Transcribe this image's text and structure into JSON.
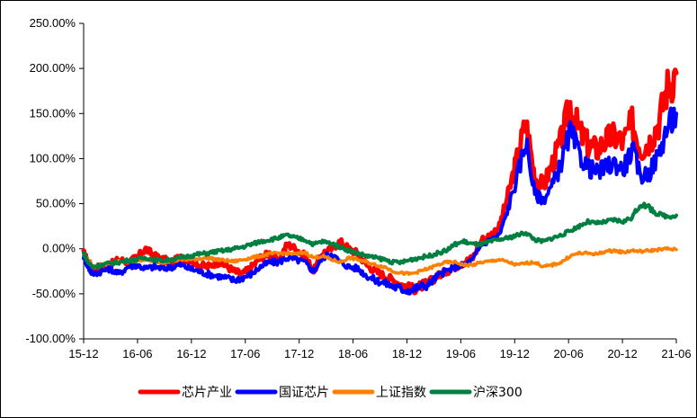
{
  "chart_data": {
    "type": "line",
    "title": "",
    "xlabel": "",
    "ylabel": "",
    "ylim": [
      -100,
      250
    ],
    "y_ticks": [
      -100,
      -50,
      0,
      50,
      100,
      150,
      200,
      250
    ],
    "y_tick_labels": [
      "-100.00%",
      "-50.00%",
      "0.00%",
      "50.00%",
      "100.00%",
      "150.00%",
      "200.00%",
      "250.00%"
    ],
    "x_tick_labels": [
      "15-12",
      "16-06",
      "16-12",
      "17-06",
      "17-12",
      "18-06",
      "18-12",
      "19-06",
      "19-12",
      "20-06",
      "20-12",
      "21-06"
    ],
    "x_range": [
      0,
      67
    ],
    "legend_position": "bottom",
    "series": [
      {
        "name": "芯片产业",
        "color": "#ff0000",
        "x": [
          0,
          0.5,
          1,
          2,
          3,
          4,
          5,
          6,
          7,
          8,
          9,
          10,
          11,
          12,
          13,
          14,
          15,
          16,
          17,
          18,
          19,
          20,
          21,
          22,
          23,
          24,
          25,
          26,
          27,
          28,
          29,
          30,
          31,
          32,
          33,
          34,
          35,
          36,
          37,
          38,
          39,
          40,
          41,
          42,
          43,
          44,
          45,
          46,
          47,
          48,
          49,
          50,
          51,
          52,
          53,
          54,
          55,
          56,
          57,
          58,
          59,
          60,
          61,
          62,
          63,
          64,
          65,
          66,
          67
        ],
        "values": [
          -5,
          -15,
          -22,
          -20,
          -18,
          -12,
          -15,
          -10,
          0,
          -8,
          -12,
          -15,
          -10,
          -12,
          -18,
          -20,
          -15,
          -18,
          -25,
          -28,
          -20,
          -10,
          -5,
          -15,
          5,
          0,
          -8,
          -25,
          -5,
          0,
          8,
          0,
          -5,
          -18,
          -25,
          -30,
          -35,
          -40,
          -45,
          -42,
          -38,
          -30,
          -25,
          -20,
          -15,
          -10,
          10,
          15,
          25,
          60,
          100,
          140,
          80,
          70,
          95,
          120,
          160,
          130,
          115,
          110,
          120,
          125,
          118,
          140,
          110,
          120,
          140,
          180,
          195
        ]
      },
      {
        "name": "国证芯片",
        "color": "#0000ff",
        "x": [
          0,
          0.5,
          1,
          2,
          3,
          4,
          5,
          6,
          7,
          8,
          9,
          10,
          11,
          12,
          13,
          14,
          15,
          16,
          17,
          18,
          19,
          20,
          21,
          22,
          23,
          24,
          25,
          26,
          27,
          28,
          29,
          30,
          31,
          32,
          33,
          34,
          35,
          36,
          37,
          38,
          39,
          40,
          41,
          42,
          43,
          44,
          45,
          46,
          47,
          48,
          49,
          50,
          51,
          52,
          53,
          54,
          55,
          56,
          57,
          58,
          59,
          60,
          61,
          62,
          63,
          64,
          65,
          66,
          67
        ],
        "values": [
          -8,
          -20,
          -28,
          -25,
          -22,
          -28,
          -20,
          -18,
          -22,
          -20,
          -22,
          -20,
          -18,
          -22,
          -25,
          -28,
          -30,
          -32,
          -35,
          -32,
          -28,
          -20,
          -15,
          -15,
          -10,
          -12,
          -15,
          -25,
          -10,
          -5,
          -15,
          -20,
          -22,
          -30,
          -35,
          -38,
          -42,
          -45,
          -46,
          -42,
          -40,
          -30,
          -25,
          -20,
          -18,
          -12,
          5,
          10,
          15,
          45,
          80,
          120,
          60,
          55,
          70,
          95,
          130,
          105,
          90,
          85,
          90,
          95,
          88,
          110,
          80,
          85,
          105,
          135,
          150
        ]
      },
      {
        "name": "上证指数",
        "color": "#ff8000",
        "x": [
          0,
          0.5,
          1,
          2,
          3,
          4,
          5,
          6,
          7,
          8,
          9,
          10,
          11,
          12,
          13,
          14,
          15,
          16,
          17,
          18,
          19,
          20,
          21,
          22,
          23,
          24,
          25,
          26,
          27,
          28,
          29,
          30,
          31,
          32,
          33,
          34,
          35,
          36,
          37,
          38,
          39,
          40,
          41,
          42,
          43,
          44,
          45,
          46,
          47,
          48,
          49,
          50,
          51,
          52,
          53,
          54,
          55,
          56,
          57,
          58,
          59,
          60,
          61,
          62,
          63,
          64,
          65,
          66,
          67
        ],
        "values": [
          -5,
          -12,
          -20,
          -18,
          -16,
          -14,
          -15,
          -13,
          -12,
          -14,
          -15,
          -13,
          -12,
          -12,
          -11,
          -10,
          -12,
          -13,
          -14,
          -12,
          -10,
          -8,
          -6,
          -5,
          -5,
          -6,
          -4,
          -10,
          -8,
          -12,
          -15,
          -10,
          -12,
          -15,
          -18,
          -20,
          -25,
          -27,
          -28,
          -25,
          -22,
          -18,
          -15,
          -15,
          -18,
          -18,
          -15,
          -14,
          -12,
          -15,
          -18,
          -16,
          -15,
          -20,
          -18,
          -15,
          -8,
          -5,
          -5,
          -6,
          -3,
          -2,
          -4,
          -2,
          -3,
          -2,
          -1,
          0,
          -1
        ]
      },
      {
        "name": "沪深300",
        "color": "#008040",
        "x": [
          0,
          0.5,
          1,
          2,
          3,
          4,
          5,
          6,
          7,
          8,
          9,
          10,
          11,
          12,
          13,
          14,
          15,
          16,
          17,
          18,
          19,
          20,
          21,
          22,
          23,
          24,
          25,
          26,
          27,
          28,
          29,
          30,
          31,
          32,
          33,
          34,
          35,
          36,
          37,
          38,
          39,
          40,
          41,
          42,
          43,
          44,
          45,
          46,
          47,
          48,
          49,
          50,
          51,
          52,
          53,
          54,
          55,
          56,
          57,
          58,
          59,
          60,
          61,
          62,
          63,
          64,
          65,
          66,
          67
        ],
        "values": [
          -5,
          -15,
          -20,
          -18,
          -16,
          -15,
          -13,
          -12,
          -10,
          -12,
          -13,
          -12,
          -10,
          -8,
          -6,
          -5,
          -3,
          -2,
          0,
          2,
          5,
          8,
          10,
          12,
          15,
          12,
          10,
          5,
          8,
          6,
          2,
          -2,
          -5,
          -8,
          -10,
          -12,
          -15,
          -15,
          -12,
          -10,
          -8,
          -5,
          -2,
          5,
          8,
          5,
          5,
          8,
          10,
          12,
          15,
          18,
          10,
          8,
          12,
          15,
          20,
          25,
          30,
          28,
          30,
          32,
          30,
          35,
          50,
          45,
          38,
          36,
          37
        ]
      }
    ]
  }
}
